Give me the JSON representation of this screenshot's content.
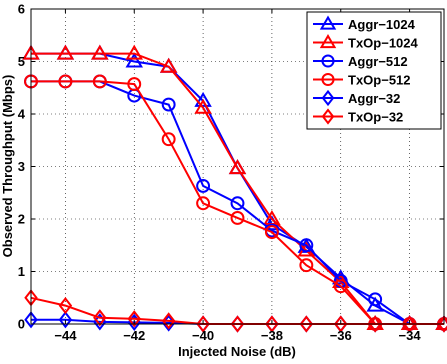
{
  "chart_data": {
    "type": "line",
    "title": "",
    "xlabel": "Injected Noise (dB)",
    "ylabel": "Observed Throughput (Mbps)",
    "xlim": [
      -45,
      -33
    ],
    "ylim": [
      0,
      6
    ],
    "xticks": [
      -44,
      -42,
      -40,
      -38,
      -36,
      -34
    ],
    "yticks": [
      0,
      1,
      2,
      3,
      4,
      5,
      6
    ],
    "grid": true,
    "legend_position": "top-right",
    "series": [
      {
        "name": "Aggr−1024",
        "color": "#0000ff",
        "marker": "triangle",
        "x": [
          -45,
          -44,
          -43,
          -42,
          -41,
          -40,
          -39,
          -38,
          -37,
          -36,
          -35,
          -34,
          -33
        ],
        "y": [
          5.15,
          5.15,
          5.15,
          5.0,
          4.9,
          4.25,
          2.97,
          1.9,
          1.47,
          0.87,
          0.35,
          0.0,
          0.0
        ]
      },
      {
        "name": "TxOp−1024",
        "color": "#ff0000",
        "marker": "triangle",
        "x": [
          -45,
          -44,
          -43,
          -42,
          -41,
          -40,
          -39,
          -38,
          -37,
          -36,
          -35,
          -34,
          -33
        ],
        "y": [
          5.15,
          5.15,
          5.15,
          5.15,
          4.9,
          4.12,
          2.97,
          2.0,
          1.4,
          0.8,
          0.0,
          0.0,
          0.0
        ]
      },
      {
        "name": "Aggr−512",
        "color": "#0000ff",
        "marker": "circle",
        "x": [
          -45,
          -44,
          -43,
          -42,
          -41,
          -40,
          -39,
          -38,
          -37,
          -36,
          -35,
          -34,
          -33
        ],
        "y": [
          4.62,
          4.62,
          4.62,
          4.35,
          4.18,
          2.63,
          2.3,
          1.78,
          1.5,
          0.82,
          0.47,
          0.0,
          0.0
        ]
      },
      {
        "name": "TxOp−512",
        "color": "#ff0000",
        "marker": "circle",
        "x": [
          -45,
          -44,
          -43,
          -42,
          -41,
          -40,
          -39,
          -38,
          -37,
          -36,
          -35,
          -34,
          -33
        ],
        "y": [
          4.62,
          4.62,
          4.62,
          4.57,
          3.52,
          2.3,
          2.02,
          1.75,
          1.12,
          0.72,
          0.0,
          0.0,
          0.0
        ]
      },
      {
        "name": "Aggr−32",
        "color": "#0000ff",
        "marker": "diamond",
        "x": [
          -45,
          -44,
          -43,
          -42,
          -41,
          -40,
          -39,
          -38,
          -37,
          -36,
          -35,
          -34,
          -33
        ],
        "y": [
          0.08,
          0.08,
          0.04,
          0.03,
          0.02,
          0.0,
          0.0,
          0.0,
          0.0,
          0.0,
          0.0,
          0.0,
          0.0
        ]
      },
      {
        "name": "TxOp−32",
        "color": "#ff0000",
        "marker": "diamond",
        "x": [
          -45,
          -44,
          -43,
          -42,
          -41,
          -40,
          -39,
          -38,
          -37,
          -36,
          -35,
          -34,
          -33
        ],
        "y": [
          0.5,
          0.35,
          0.12,
          0.1,
          0.06,
          0.0,
          0.0,
          0.0,
          0.0,
          0.0,
          0.0,
          0.0,
          0.0
        ]
      }
    ]
  }
}
